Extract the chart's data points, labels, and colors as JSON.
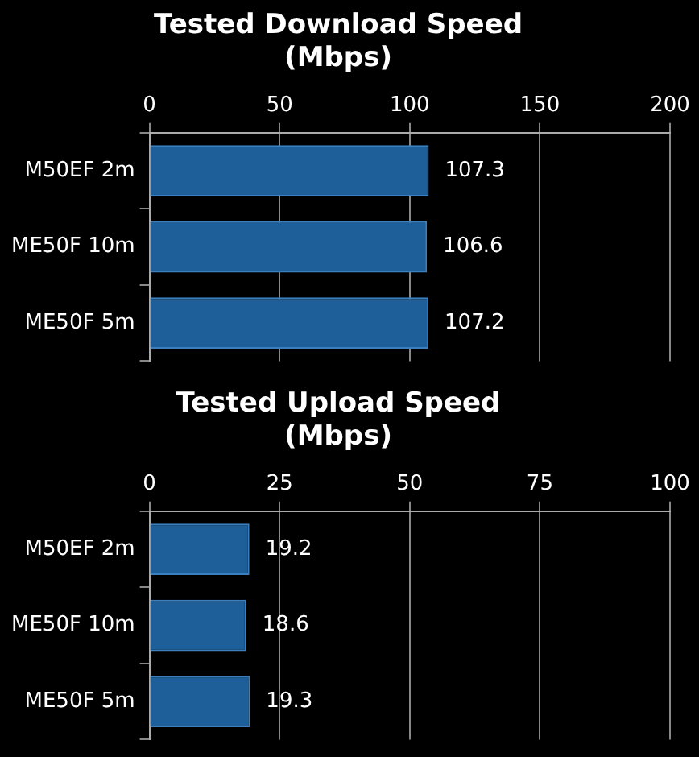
{
  "chart_data": [
    {
      "type": "bar",
      "orientation": "horizontal",
      "title": "Tested Download Speed\n(Mbps)",
      "categories": [
        "M50EF 2m",
        "ME50F 10m",
        "ME50F 5m"
      ],
      "values": [
        107.3,
        106.6,
        107.2
      ],
      "color": "#1f5f99",
      "xlim": [
        0,
        200
      ],
      "xticks": [
        0,
        50,
        100,
        150,
        200
      ],
      "grid": "x",
      "data_labels": true
    },
    {
      "type": "bar",
      "orientation": "horizontal",
      "title": "Tested Upload Speed\n(Mbps)",
      "categories": [
        "M50EF 2m",
        "ME50F 10m",
        "ME50F 5m"
      ],
      "values": [
        19.2,
        18.6,
        19.3
      ],
      "color": "#1f5f99",
      "xlim": [
        0,
        100
      ],
      "xticks": [
        0,
        25,
        50,
        75,
        100
      ],
      "grid": "x",
      "data_labels": true
    }
  ]
}
